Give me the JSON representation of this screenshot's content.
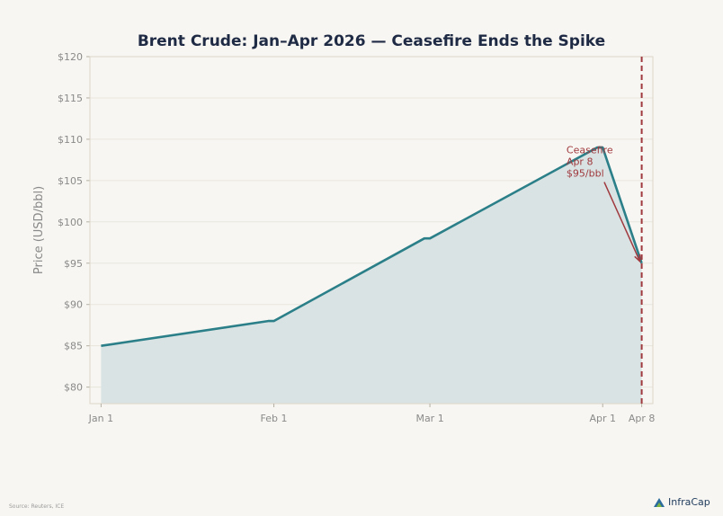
{
  "chart_data": {
    "type": "area",
    "title": "Brent Crude: Jan–Apr 2026 — Ceasefire Ends the Spike",
    "xlabel": "",
    "ylabel": "Price (USD/bbl)",
    "ylim": [
      78,
      120
    ],
    "yticks": [
      80,
      85,
      90,
      95,
      100,
      105,
      110,
      115,
      120
    ],
    "ytick_labels": [
      "$80",
      "$85",
      "$90",
      "$95",
      "$100",
      "$105",
      "$110",
      "$115",
      "$120"
    ],
    "xlim": [
      -2,
      99
    ],
    "xticks": [
      {
        "day": 0,
        "label": "Jan 1"
      },
      {
        "day": 31,
        "label": "Feb 1"
      },
      {
        "day": 59,
        "label": "Mar 1"
      },
      {
        "day": 90,
        "label": "Apr 1"
      },
      {
        "day": 97,
        "label": "Apr 8"
      }
    ],
    "series": [
      {
        "name": "Brent Crude",
        "x": [
          0,
          30,
          31,
          58,
          59,
          89,
          90,
          97
        ],
        "y": [
          85,
          88,
          88,
          98,
          98,
          109,
          109,
          95
        ]
      }
    ],
    "vline": {
      "day": 97
    },
    "annotation": {
      "lines": [
        "Ceasefire",
        "Apr 8",
        "$95/bbl"
      ],
      "point_day": 97,
      "point_value": 95,
      "text_day": 83.5,
      "text_value": 108.3
    },
    "grid": true,
    "colors": {
      "line": "#2b7f88",
      "fill": "#d9e3e3",
      "vline": "#a03a3f",
      "annot": "#a03a3f",
      "grid": "#e8e5dc",
      "frame": "#ddd7c8"
    }
  },
  "footer": {
    "source": "Source: Reuters, ICE",
    "brand": "InfraCap",
    "brand_icon": "infracap-logo-icon"
  }
}
